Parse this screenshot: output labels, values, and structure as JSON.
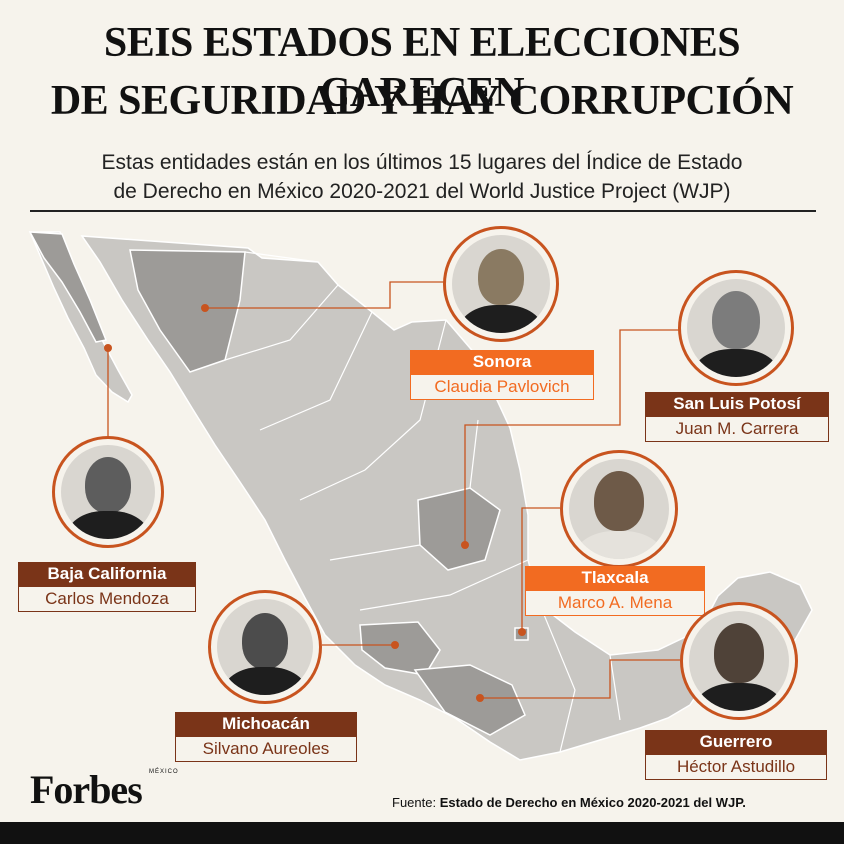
{
  "header": {
    "title_line1": "SEIS ESTADOS EN ELECCIONES CARECEN",
    "title_line2": "DE SEGURIDAD Y HAY CORRUPCIÓN",
    "subtitle_line1": "Estas entidades están en los últimos 15 lugares del Índice de Estado",
    "subtitle_line2": "de Derecho en México 2020-2021 del World Justice Project (WJP)"
  },
  "colors": {
    "accent": "#c8541f",
    "label_orange": "#f26b21",
    "label_dark": "#7a3418",
    "map_base": "#c9c7c3",
    "map_highlight": "#9d9b98",
    "background": "#f6f3ec"
  },
  "states": [
    {
      "name": "Sonora",
      "governor": "Claudia Pavlovich",
      "style": "orange"
    },
    {
      "name": "San Luis Potosí",
      "governor": "Juan M. Carrera",
      "style": "dark"
    },
    {
      "name": "Baja California",
      "governor": "Carlos Mendoza",
      "style": "dark"
    },
    {
      "name": "Tlaxcala",
      "governor": "Marco A. Mena",
      "style": "orange"
    },
    {
      "name": "Michoacán",
      "governor": "Silvano Aureoles",
      "style": "dark"
    },
    {
      "name": "Guerrero",
      "governor": "Héctor Astudillo",
      "style": "dark"
    }
  ],
  "footer": {
    "brand": "Forbes",
    "brand_sub": "MÉXICO",
    "source_label": "Fuente:",
    "source_text": "Estado de Derecho en México 2020-2021 del WJP."
  }
}
